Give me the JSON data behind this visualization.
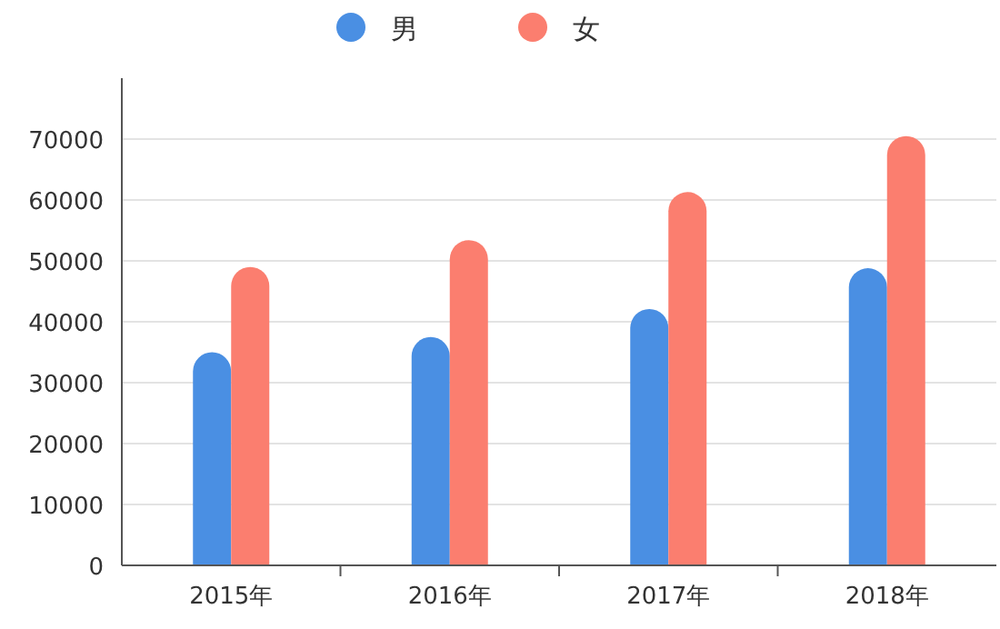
{
  "chart_data": {
    "type": "bar",
    "categories": [
      "2015年",
      "2016年",
      "2017年",
      "2018年"
    ],
    "series": [
      {
        "name": "男",
        "color": "#4a8fe3",
        "values": [
          35000,
          37500,
          42100,
          48800
        ]
      },
      {
        "name": "女",
        "color": "#fb7e6f",
        "values": [
          49000,
          53400,
          61300,
          70500
        ]
      }
    ],
    "ylim": [
      0,
      80000
    ],
    "yticks": [
      0,
      10000,
      20000,
      30000,
      40000,
      50000,
      60000,
      70000
    ],
    "grid": "y",
    "legend": "top"
  }
}
